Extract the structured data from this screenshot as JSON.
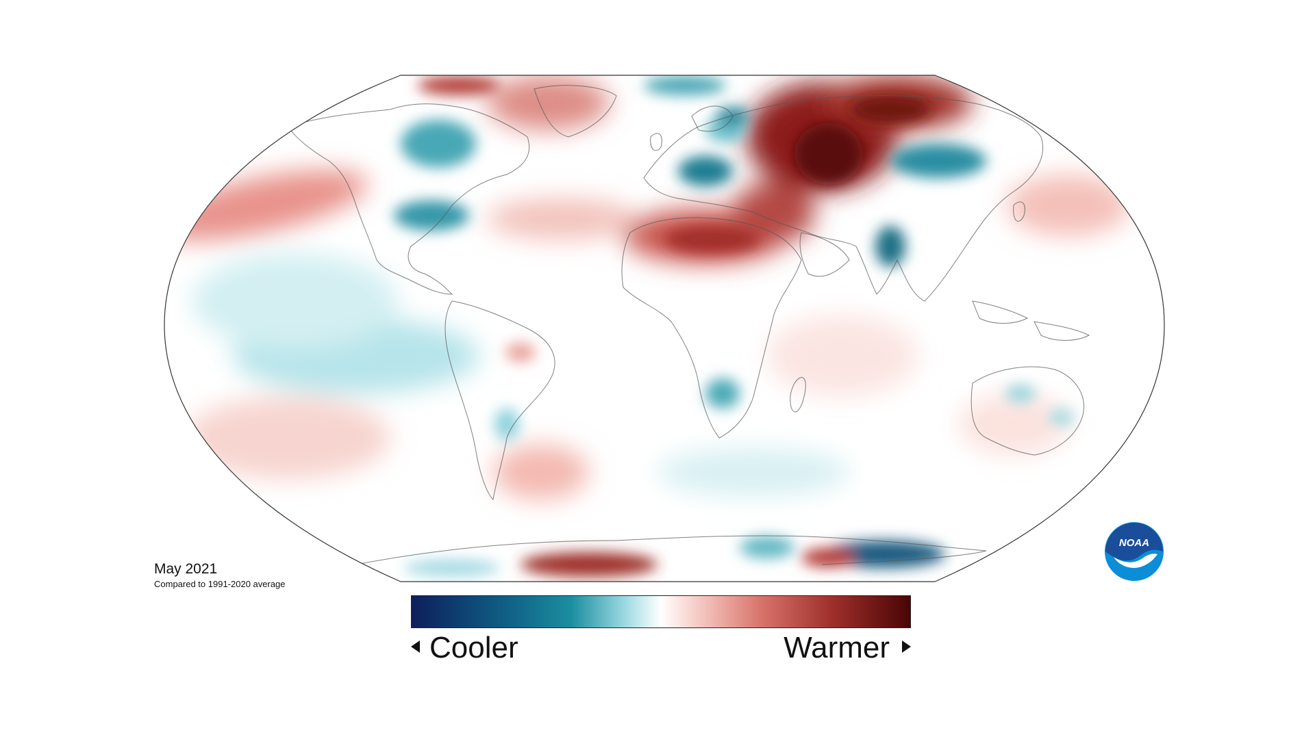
{
  "map": {
    "date_label": "May 2021",
    "baseline_note": "Compared to 1991-2020 average",
    "projection": "robinson",
    "theme": "surface temperature departure from average",
    "colors": {
      "very_cold": "#0e1f5c",
      "cold": "#0f7a8e",
      "cool": "#a9e0e6",
      "neutral": "#ffffff",
      "warm": "#f2b5ae",
      "hot": "#b63a35",
      "very_hot": "#5a0808",
      "coastline": "#555555"
    }
  },
  "legend": {
    "cooler_label": "Cooler",
    "warmer_label": "Warmer"
  },
  "logo": {
    "text": "NOAA",
    "outer_color": "#1a4d9a",
    "inner_color": "#0a8ed8"
  }
}
